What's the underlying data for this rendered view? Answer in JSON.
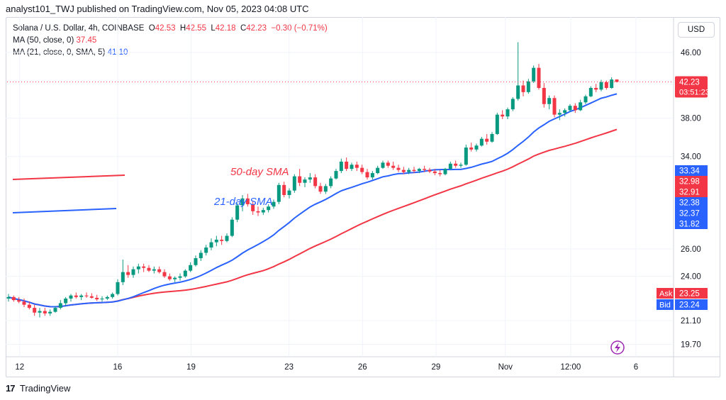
{
  "header": {
    "publisher": "analyst101_TWJ published on TradingView.com, Nov 05, 2023 04:08 UTC"
  },
  "legend": {
    "symbol": "Solana / U.S. Dollar, 4h, COINBASE",
    "o_label": "O",
    "o_val": "42.53",
    "h_label": "H",
    "h_val": "42.55",
    "l_label": "L",
    "l_val": "42.18",
    "c_label": "C",
    "c_val": "42.23",
    "change": "−0.30 (−0.71%)",
    "ma50_label": "MA (50, close, 0)",
    "ma50_val": "37.45",
    "ma21_label": "MA (21, close, 0, SMA, 5)",
    "ma21_val": "41.10"
  },
  "currency_button": "USD",
  "footer": {
    "logo": "17",
    "brand": "TradingView"
  },
  "chart_data": {
    "type": "candlestick",
    "symbol": "SOLUSD",
    "interval": "4h",
    "y_axis": {
      "scale": "log",
      "range": [
        19.0,
        51.0
      ],
      "ticks": [
        "46.00",
        "38.00",
        "34.00",
        "26.00",
        "24.00",
        "21.10",
        "19.70"
      ]
    },
    "x_axis_ticks": [
      "12",
      "16",
      "19",
      "23",
      "26",
      "29",
      "Nov",
      "12:00",
      "6"
    ],
    "last_price": "42.23",
    "countdown": "03:51:23",
    "price_tags": [
      {
        "text": "33.34",
        "color": "#2962ff"
      },
      {
        "text": "32.98",
        "color": "#f23645"
      },
      {
        "text": "32.91",
        "color": "#f23645"
      },
      {
        "text": "32.38",
        "color": "#2962ff"
      },
      {
        "text": "32.37",
        "color": "#2962ff"
      },
      {
        "text": "31.82",
        "color": "#2962ff"
      }
    ],
    "ask": {
      "label": "Ask",
      "value": "23.25",
      "color": "#f23645"
    },
    "bid": {
      "label": "Bid",
      "value": "23.24",
      "color": "#2962ff"
    },
    "annotations": [
      {
        "text": "50-day SMA",
        "color": "#f23645"
      },
      {
        "text": "21-day SMA",
        "color": "#2962ff"
      }
    ],
    "colors": {
      "up": "#089981",
      "down": "#f23645",
      "ma50": "#f23645",
      "ma21": "#2962ff"
    },
    "candles": [
      [
        22.5,
        22.8,
        22.3,
        22.6
      ],
      [
        22.6,
        22.7,
        22.3,
        22.4
      ],
      [
        22.4,
        22.6,
        22.2,
        22.3
      ],
      [
        22.3,
        22.5,
        21.95,
        22.1
      ],
      [
        22.1,
        22.3,
        21.8,
        21.9
      ],
      [
        21.9,
        22.1,
        21.4,
        21.6
      ],
      [
        21.6,
        21.9,
        21.3,
        21.7
      ],
      [
        21.7,
        21.9,
        21.4,
        21.55
      ],
      [
        21.55,
        21.8,
        21.4,
        21.65
      ],
      [
        21.65,
        22.0,
        21.6,
        21.9
      ],
      [
        21.9,
        22.4,
        21.8,
        22.2
      ],
      [
        22.2,
        22.6,
        22.0,
        22.5
      ],
      [
        22.5,
        22.8,
        22.3,
        22.7
      ],
      [
        22.7,
        22.9,
        22.5,
        22.6
      ],
      [
        22.6,
        22.8,
        22.4,
        22.7
      ],
      [
        22.7,
        22.9,
        22.55,
        22.65
      ],
      [
        22.65,
        22.85,
        22.5,
        22.55
      ],
      [
        22.55,
        22.75,
        22.35,
        22.45
      ],
      [
        22.45,
        22.65,
        22.3,
        22.5
      ],
      [
        22.5,
        22.7,
        22.4,
        22.6
      ],
      [
        22.6,
        22.9,
        22.5,
        22.8
      ],
      [
        22.8,
        23.8,
        22.7,
        23.6
      ],
      [
        23.6,
        25.2,
        23.4,
        24.3
      ],
      [
        24.3,
        24.8,
        23.9,
        24.1
      ],
      [
        24.1,
        24.7,
        23.9,
        24.5
      ],
      [
        24.5,
        24.9,
        24.2,
        24.7
      ],
      [
        24.7,
        24.9,
        24.3,
        24.6
      ],
      [
        24.6,
        24.8,
        24.3,
        24.4
      ],
      [
        24.4,
        24.7,
        24.2,
        24.5
      ],
      [
        24.5,
        24.7,
        24.2,
        24.3
      ],
      [
        24.3,
        24.5,
        23.9,
        24.0
      ],
      [
        24.0,
        24.2,
        23.7,
        23.8
      ],
      [
        23.8,
        24.0,
        23.6,
        23.9
      ],
      [
        23.9,
        24.2,
        23.7,
        24.0
      ],
      [
        24.0,
        24.5,
        23.9,
        24.4
      ],
      [
        24.4,
        25.0,
        24.3,
        24.8
      ],
      [
        24.8,
        25.5,
        24.7,
        25.3
      ],
      [
        25.3,
        25.9,
        25.1,
        25.7
      ],
      [
        25.7,
        26.3,
        25.5,
        26.1
      ],
      [
        26.1,
        26.8,
        25.9,
        26.5
      ],
      [
        26.5,
        27.0,
        26.2,
        26.7
      ],
      [
        26.7,
        27.0,
        26.3,
        26.6
      ],
      [
        26.6,
        27.2,
        26.5,
        27.0
      ],
      [
        27.0,
        28.5,
        26.9,
        28.3
      ],
      [
        28.3,
        29.7,
        28.1,
        29.5
      ],
      [
        29.5,
        30.4,
        29.0,
        30.1
      ],
      [
        30.1,
        30.5,
        29.4,
        29.6
      ],
      [
        29.6,
        29.9,
        28.7,
        29.0
      ],
      [
        29.0,
        29.4,
        28.6,
        28.9
      ],
      [
        28.9,
        29.3,
        28.7,
        29.1
      ],
      [
        29.1,
        29.6,
        28.9,
        29.4
      ],
      [
        29.4,
        30.0,
        29.2,
        29.8
      ],
      [
        29.8,
        31.5,
        29.6,
        31.3
      ],
      [
        31.3,
        31.6,
        30.2,
        30.4
      ],
      [
        30.4,
        31.0,
        30.1,
        30.8
      ],
      [
        30.8,
        32.3,
        30.6,
        32.1
      ],
      [
        32.1,
        32.8,
        31.2,
        31.5
      ],
      [
        31.5,
        32.0,
        31.1,
        31.8
      ],
      [
        31.8,
        32.4,
        31.5,
        32.0
      ],
      [
        32.0,
        32.3,
        31.0,
        31.2
      ],
      [
        31.2,
        31.5,
        30.5,
        30.7
      ],
      [
        30.7,
        31.4,
        30.5,
        31.2
      ],
      [
        31.2,
        32.1,
        31.0,
        31.9
      ],
      [
        31.9,
        32.8,
        31.8,
        32.6
      ],
      [
        32.6,
        33.8,
        32.4,
        33.5
      ],
      [
        33.5,
        33.9,
        32.6,
        32.8
      ],
      [
        32.8,
        33.4,
        32.6,
        33.2
      ],
      [
        33.2,
        33.5,
        32.6,
        32.9
      ],
      [
        32.9,
        33.2,
        32.3,
        32.5
      ],
      [
        32.5,
        32.8,
        31.8,
        32.0
      ],
      [
        32.0,
        32.6,
        31.8,
        32.4
      ],
      [
        32.4,
        33.1,
        32.3,
        32.9
      ],
      [
        32.9,
        33.6,
        32.8,
        33.4
      ],
      [
        33.4,
        33.6,
        32.9,
        33.1
      ],
      [
        33.1,
        33.5,
        32.7,
        32.9
      ],
      [
        32.9,
        33.2,
        32.5,
        32.7
      ],
      [
        32.7,
        33.0,
        32.3,
        32.5
      ],
      [
        32.5,
        32.9,
        32.3,
        32.7
      ],
      [
        32.7,
        33.0,
        32.4,
        32.6
      ],
      [
        32.6,
        32.9,
        32.4,
        32.8
      ],
      [
        32.8,
        33.1,
        32.5,
        32.7
      ],
      [
        32.7,
        32.9,
        32.4,
        32.55
      ],
      [
        32.55,
        32.8,
        32.2,
        32.4
      ],
      [
        32.4,
        32.7,
        32.1,
        32.3
      ],
      [
        32.3,
        32.9,
        32.2,
        32.8
      ],
      [
        32.8,
        33.5,
        32.7,
        33.3
      ],
      [
        33.3,
        33.6,
        32.9,
        33.1
      ],
      [
        33.1,
        33.4,
        32.9,
        33.2
      ],
      [
        33.2,
        35.2,
        33.1,
        34.9
      ],
      [
        34.9,
        35.4,
        34.5,
        34.7
      ],
      [
        34.7,
        35.3,
        34.5,
        35.1
      ],
      [
        35.1,
        36.0,
        35.0,
        35.8
      ],
      [
        35.8,
        36.3,
        35.2,
        35.5
      ],
      [
        35.5,
        36.5,
        35.4,
        36.3
      ],
      [
        36.3,
        38.6,
        36.2,
        38.4
      ],
      [
        38.4,
        38.9,
        37.9,
        38.2
      ],
      [
        38.2,
        39.2,
        37.9,
        39.0
      ],
      [
        39.0,
        40.4,
        38.8,
        40.2
      ],
      [
        40.2,
        47.4,
        40.0,
        41.8
      ],
      [
        41.8,
        42.4,
        40.5,
        41.0
      ],
      [
        41.0,
        42.6,
        40.8,
        42.3
      ],
      [
        42.3,
        44.3,
        42.1,
        44.0
      ],
      [
        44.0,
        44.5,
        41.3,
        41.5
      ],
      [
        41.5,
        42.1,
        39.2,
        39.6
      ],
      [
        39.6,
        40.6,
        39.0,
        40.3
      ],
      [
        40.3,
        40.6,
        38.1,
        38.4
      ],
      [
        38.4,
        39.0,
        37.8,
        38.6
      ],
      [
        38.6,
        39.1,
        38.2,
        38.9
      ],
      [
        38.9,
        39.6,
        38.7,
        39.4
      ],
      [
        39.4,
        39.7,
        38.6,
        38.9
      ],
      [
        38.9,
        40.1,
        38.8,
        39.8
      ],
      [
        39.8,
        40.7,
        39.6,
        40.5
      ],
      [
        40.5,
        41.7,
        40.4,
        41.5
      ],
      [
        41.5,
        42.0,
        41.0,
        41.3
      ],
      [
        41.3,
        42.5,
        41.1,
        42.2
      ],
      [
        42.2,
        42.4,
        41.3,
        41.5
      ],
      [
        41.5,
        42.8,
        41.4,
        42.53
      ],
      [
        42.53,
        42.55,
        42.18,
        42.23
      ]
    ]
  }
}
